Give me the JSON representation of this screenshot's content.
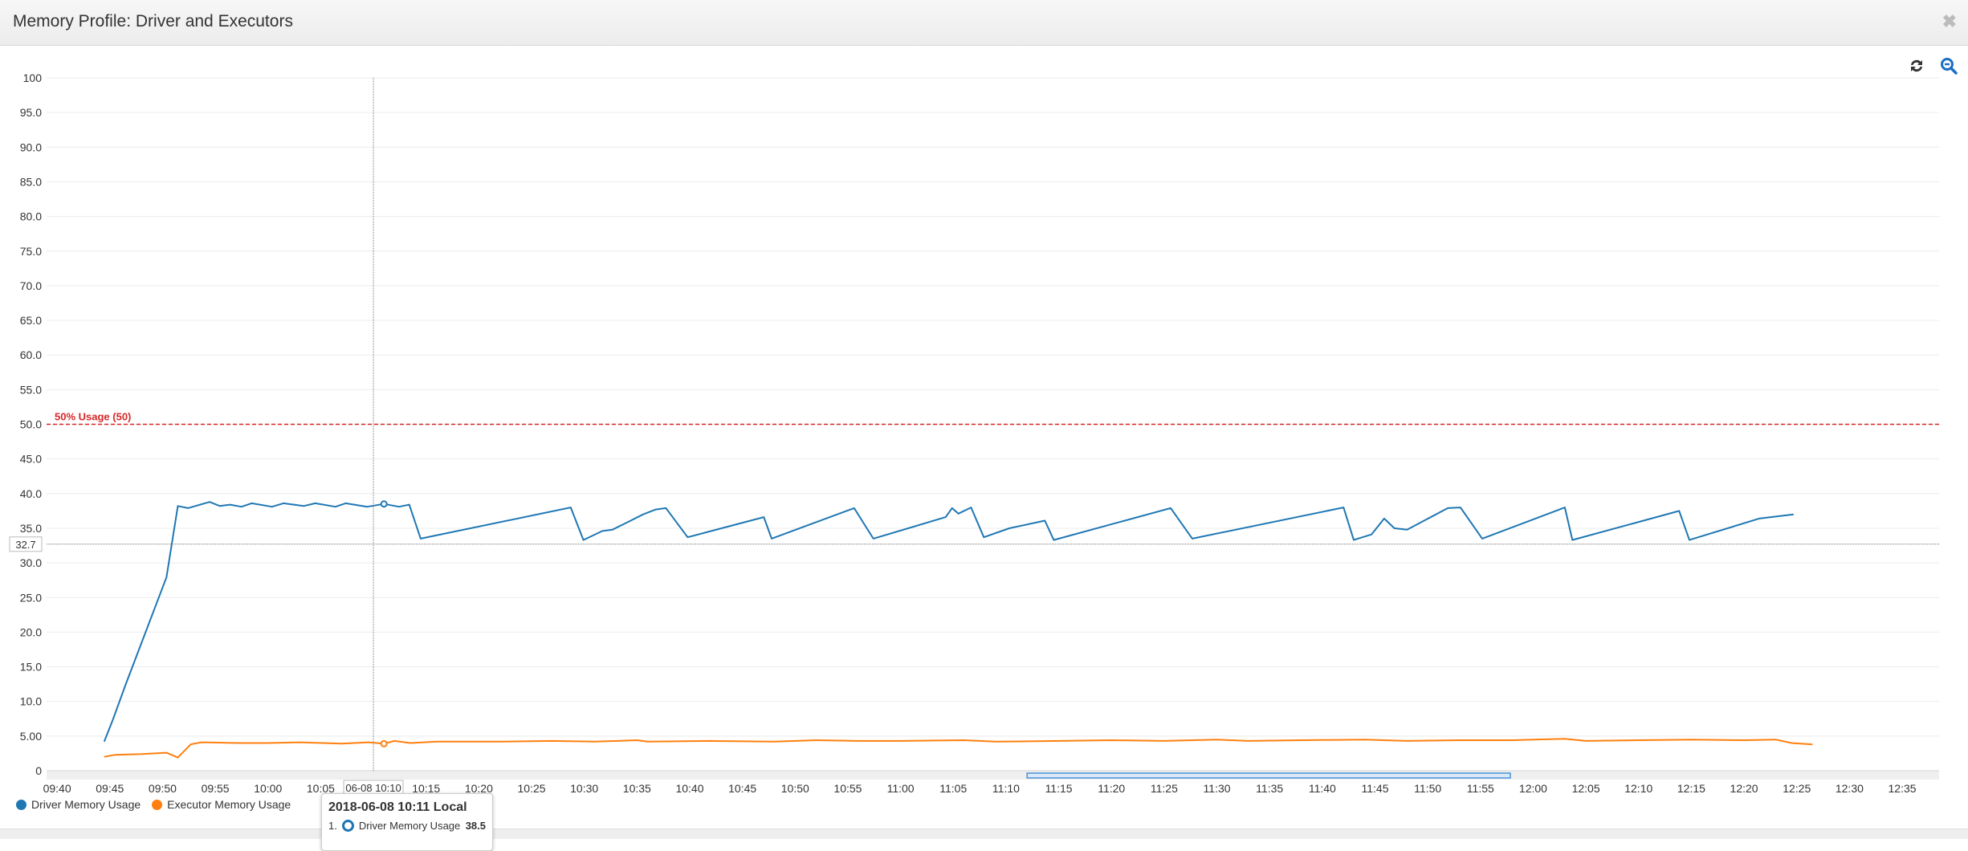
{
  "window": {
    "title": "Memory Profile: Driver and Executors",
    "close_icon": "close-icon"
  },
  "toolbar": {
    "refresh_icon": "refresh-icon",
    "zoom_out_icon": "zoom-out-icon"
  },
  "colors": {
    "driver": "#1f77b4",
    "executor": "#ff7f0e",
    "threshold": "#d62728"
  },
  "chart_data": {
    "type": "line",
    "xlabel": "",
    "ylabel": "",
    "ylim": [
      0,
      100
    ],
    "xlim": [
      "09:39:00",
      "12:38:30"
    ],
    "date": "2018-06-08",
    "y_ticks": [
      "0",
      "5.00",
      "10.0",
      "15.0",
      "20.0",
      "25.0",
      "30.0",
      "35.0",
      "40.0",
      "45.0",
      "50.0",
      "55.0",
      "60.0",
      "65.0",
      "70.0",
      "75.0",
      "80.0",
      "85.0",
      "90.0",
      "95.0",
      "100"
    ],
    "x_ticks": [
      "09:40",
      "09:45",
      "09:50",
      "09:55",
      "10:00",
      "10:05",
      "10:10",
      "10:15",
      "10:20",
      "10:25",
      "10:30",
      "10:35",
      "10:40",
      "10:45",
      "10:50",
      "10:55",
      "11:00",
      "11:05",
      "11:10",
      "11:15",
      "11:20",
      "11:25",
      "11:30",
      "11:35",
      "11:40",
      "11:45",
      "11:50",
      "11:55",
      "12:00",
      "12:05",
      "12:10",
      "12:15",
      "12:20",
      "12:25",
      "12:30",
      "12:35"
    ],
    "grid": true,
    "legend": "bottom-left",
    "threshold": {
      "value": 50,
      "label": "50% Usage (50)"
    },
    "crosshair": {
      "x_label": "06-08 10:10",
      "y_label": "32.7",
      "x": "10:11:00",
      "y": 32.7
    },
    "navigator_range": [
      "11:12:00",
      "11:57:50"
    ],
    "series": [
      {
        "name": "Driver Memory Usage",
        "points": [
          [
            "09:44:28",
            4.2
          ],
          [
            "09:45:18",
            7.4
          ],
          [
            "09:46:31",
            12.5
          ],
          [
            "09:50:22",
            27.9
          ],
          [
            "09:51:27",
            38.2
          ],
          [
            "09:52:25",
            37.9
          ],
          [
            "09:54:28",
            38.8
          ],
          [
            "09:55:26",
            38.2
          ],
          [
            "09:56:24",
            38.4
          ],
          [
            "09:57:29",
            38.1
          ],
          [
            "09:58:27",
            38.6
          ],
          [
            "10:00:23",
            38.1
          ],
          [
            "10:01:28",
            38.6
          ],
          [
            "10:03:23",
            38.2
          ],
          [
            "10:04:29",
            38.6
          ],
          [
            "10:06:24",
            38.1
          ],
          [
            "10:07:22",
            38.6
          ],
          [
            "10:09:25",
            38.1
          ],
          [
            "10:11:00",
            38.5
          ],
          [
            "10:12:26",
            38.1
          ],
          [
            "10:13:24",
            38.4
          ],
          [
            "10:14:29",
            33.5
          ],
          [
            "10:28:43",
            38.0
          ],
          [
            "10:29:55",
            33.3
          ],
          [
            "10:31:43",
            34.6
          ],
          [
            "10:32:41",
            34.8
          ],
          [
            "10:33:53",
            35.7
          ],
          [
            "10:35:35",
            37.0
          ],
          [
            "10:36:47",
            37.7
          ],
          [
            "10:37:45",
            37.9
          ],
          [
            "10:39:48",
            33.7
          ],
          [
            "10:47:02",
            36.6
          ],
          [
            "10:47:46",
            33.5
          ],
          [
            "10:55:36",
            37.9
          ],
          [
            "10:57:25",
            33.5
          ],
          [
            "11:04:17",
            36.6
          ],
          [
            "11:04:53",
            37.9
          ],
          [
            "11:05:29",
            37.1
          ],
          [
            "11:06:41",
            38.0
          ],
          [
            "11:07:54",
            33.7
          ],
          [
            "11:10:19",
            35.0
          ],
          [
            "11:13:41",
            36.1
          ],
          [
            "11:14:32",
            33.3
          ],
          [
            "11:25:37",
            37.9
          ],
          [
            "11:27:40",
            33.5
          ],
          [
            "11:42:01",
            38.0
          ],
          [
            "11:42:59",
            33.3
          ],
          [
            "11:44:40",
            34.1
          ],
          [
            "11:45:52",
            36.4
          ],
          [
            "11:46:50",
            35.0
          ],
          [
            "11:48:03",
            34.8
          ],
          [
            "11:51:54",
            37.9
          ],
          [
            "11:53:06",
            38.0
          ],
          [
            "11:55:10",
            33.5
          ],
          [
            "12:03:00",
            38.0
          ],
          [
            "12:03:43",
            33.3
          ],
          [
            "12:13:51",
            37.5
          ],
          [
            "12:14:49",
            33.3
          ],
          [
            "12:21:26",
            36.4
          ],
          [
            "12:24:42",
            37.0
          ]
        ]
      },
      {
        "name": "Executor Memory Usage",
        "points": [
          [
            "09:44:28",
            2.0
          ],
          [
            "09:45:30",
            2.3
          ],
          [
            "09:48:00",
            2.4
          ],
          [
            "09:50:22",
            2.6
          ],
          [
            "09:51:27",
            1.9
          ],
          [
            "09:52:40",
            3.8
          ],
          [
            "09:53:40",
            4.1
          ],
          [
            "09:57:00",
            4.0
          ],
          [
            "10:00:00",
            4.0
          ],
          [
            "10:03:00",
            4.1
          ],
          [
            "10:07:00",
            3.9
          ],
          [
            "10:09:30",
            4.1
          ],
          [
            "10:11:00",
            3.9
          ],
          [
            "10:12:00",
            4.3
          ],
          [
            "10:13:30",
            4.0
          ],
          [
            "10:16:00",
            4.2
          ],
          [
            "10:22:00",
            4.2
          ],
          [
            "10:27:00",
            4.3
          ],
          [
            "10:31:00",
            4.2
          ],
          [
            "10:35:00",
            4.4
          ],
          [
            "10:36:00",
            4.2
          ],
          [
            "10:42:00",
            4.3
          ],
          [
            "10:48:00",
            4.2
          ],
          [
            "10:52:00",
            4.4
          ],
          [
            "10:56:00",
            4.3
          ],
          [
            "11:00:00",
            4.3
          ],
          [
            "11:06:00",
            4.4
          ],
          [
            "11:09:00",
            4.2
          ],
          [
            "11:15:00",
            4.3
          ],
          [
            "11:20:00",
            4.4
          ],
          [
            "11:25:00",
            4.3
          ],
          [
            "11:30:00",
            4.5
          ],
          [
            "11:33:00",
            4.3
          ],
          [
            "11:38:00",
            4.4
          ],
          [
            "11:44:00",
            4.5
          ],
          [
            "11:48:00",
            4.3
          ],
          [
            "11:53:00",
            4.4
          ],
          [
            "11:58:00",
            4.4
          ],
          [
            "12:03:00",
            4.6
          ],
          [
            "12:05:00",
            4.3
          ],
          [
            "12:10:00",
            4.4
          ],
          [
            "12:15:00",
            4.5
          ],
          [
            "12:20:00",
            4.4
          ],
          [
            "12:23:00",
            4.5
          ],
          [
            "12:24:30",
            4.0
          ],
          [
            "12:26:30",
            3.8
          ]
        ]
      }
    ]
  },
  "tooltip": {
    "title": "2018-06-08 10:11 Local",
    "rows": [
      {
        "index": "1.",
        "name": "Driver Memory Usage",
        "value": "38.5"
      }
    ]
  }
}
